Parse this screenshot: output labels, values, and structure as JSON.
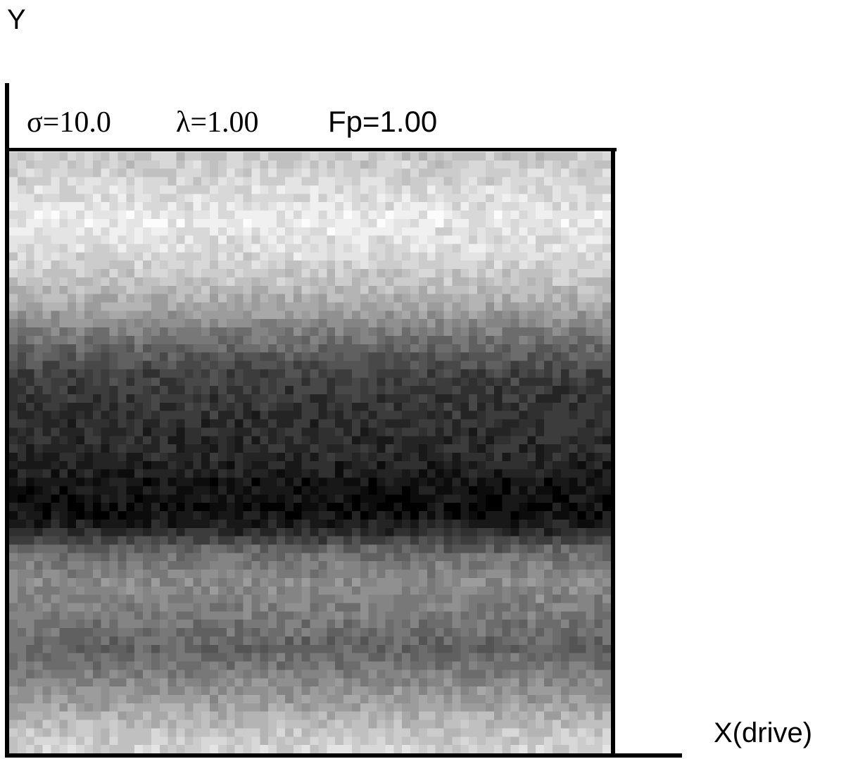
{
  "axes": {
    "y_label": "Y",
    "x_label": "X(drive)"
  },
  "parameters": {
    "sigma_symbol": "σ",
    "sigma_value": "=10.0",
    "lambda_symbol": "λ",
    "lambda_value": "=1.00",
    "fp_text": "Fp=1.00"
  },
  "field": {
    "colormap": "grayscale",
    "description_levels": "light top, dark middle band, medium-light bottom"
  }
}
